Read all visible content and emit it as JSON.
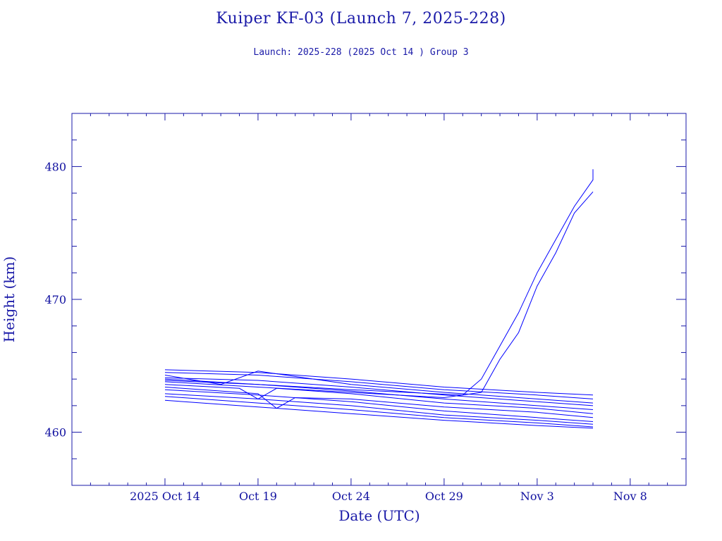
{
  "title": "Kuiper KF-03 (Launch 7, 2025-228)",
  "subtitle": "Launch: 2025-228  (2025 Oct 14 )  Group 3",
  "chart_data": {
    "type": "line",
    "title": "Kuiper KF-03 (Launch 7, 2025-228)",
    "subtitle": "Launch: 2025-228  (2025 Oct 14 )  Group 3",
    "xlabel": "Date (UTC)",
    "ylabel": "Height (km)",
    "xlim": [
      "2025-10-09",
      "2025-11-11"
    ],
    "ylim": [
      456,
      484
    ],
    "x_ticks": [
      {
        "date": "2025-10-14",
        "label": "2025 Oct 14"
      },
      {
        "date": "2025-10-19",
        "label": "Oct 19"
      },
      {
        "date": "2025-10-24",
        "label": "Oct 24"
      },
      {
        "date": "2025-10-29",
        "label": "Oct 29"
      },
      {
        "date": "2025-11-03",
        "label": "Nov  3"
      },
      {
        "date": "2025-11-08",
        "label": "Nov  8"
      }
    ],
    "y_ticks": [
      460,
      470,
      480
    ],
    "grid": false,
    "line_color": "#0000ff",
    "series": [
      {
        "x": [
          "2025-10-14",
          "2025-10-19",
          "2025-10-24",
          "2025-10-29",
          "2025-11-03",
          "2025-11-06"
        ],
        "y": [
          464.7,
          464.5,
          464.0,
          463.4,
          463.0,
          462.8
        ]
      },
      {
        "x": [
          "2025-10-14",
          "2025-10-19",
          "2025-10-24",
          "2025-10-29",
          "2025-11-03",
          "2025-11-06"
        ],
        "y": [
          464.5,
          464.3,
          463.8,
          463.2,
          462.8,
          462.5
        ]
      },
      {
        "x": [
          "2025-10-14",
          "2025-10-17",
          "2025-10-19",
          "2025-10-24",
          "2025-10-29",
          "2025-11-03",
          "2025-11-06"
        ],
        "y": [
          464.3,
          463.6,
          464.6,
          463.6,
          463.0,
          462.5,
          462.2
        ]
      },
      {
        "x": [
          "2025-10-14",
          "2025-10-19",
          "2025-10-24",
          "2025-10-29",
          "2025-11-03",
          "2025-11-06"
        ],
        "y": [
          464.1,
          463.9,
          463.4,
          462.8,
          462.3,
          462.0
        ]
      },
      {
        "x": [
          "2025-10-14",
          "2025-10-19",
          "2025-10-24",
          "2025-10-29",
          "2025-11-03",
          "2025-11-06"
        ],
        "y": [
          463.9,
          463.6,
          463.1,
          462.5,
          462.0,
          461.7
        ]
      },
      {
        "x": [
          "2025-10-14",
          "2025-10-18",
          "2025-10-19",
          "2025-10-20",
          "2025-10-24",
          "2025-10-29",
          "2025-11-03",
          "2025-11-06"
        ],
        "y": [
          463.6,
          463.3,
          462.5,
          463.3,
          462.9,
          462.2,
          461.8,
          461.4
        ]
      },
      {
        "x": [
          "2025-10-14",
          "2025-10-19",
          "2025-10-20",
          "2025-10-21",
          "2025-10-24",
          "2025-10-29",
          "2025-11-03",
          "2025-11-06"
        ],
        "y": [
          463.4,
          462.9,
          461.8,
          462.6,
          462.5,
          461.9,
          461.5,
          461.1
        ]
      },
      {
        "x": [
          "2025-10-14",
          "2025-10-19",
          "2025-10-24",
          "2025-10-29",
          "2025-11-03",
          "2025-11-06"
        ],
        "y": [
          463.2,
          462.8,
          462.3,
          461.6,
          461.1,
          460.8
        ]
      },
      {
        "x": [
          "2025-10-14",
          "2025-10-19",
          "2025-10-24",
          "2025-10-29",
          "2025-11-03",
          "2025-11-06"
        ],
        "y": [
          462.9,
          462.5,
          462.0,
          461.3,
          460.9,
          460.6
        ]
      },
      {
        "x": [
          "2025-10-14",
          "2025-10-19",
          "2025-10-24",
          "2025-10-29",
          "2025-11-03",
          "2025-11-06"
        ],
        "y": [
          462.7,
          462.2,
          461.7,
          461.1,
          460.7,
          460.4
        ]
      },
      {
        "x": [
          "2025-10-14",
          "2025-10-19",
          "2025-10-24",
          "2025-10-29",
          "2025-11-03",
          "2025-11-06"
        ],
        "y": [
          462.4,
          461.9,
          461.4,
          460.9,
          460.5,
          460.3
        ]
      },
      {
        "x": [
          "2025-10-14",
          "2025-10-19",
          "2025-10-24",
          "2025-10-30",
          "2025-10-31",
          "2025-11-01",
          "2025-11-02",
          "2025-11-03",
          "2025-11-04",
          "2025-11-05",
          "2025-11-06",
          "2025-11-06"
        ],
        "y": [
          464.0,
          463.6,
          463.2,
          462.8,
          464.0,
          466.5,
          469.0,
          472.0,
          474.5,
          477.0,
          479.0,
          479.8
        ]
      },
      {
        "x": [
          "2025-10-14",
          "2025-10-19",
          "2025-10-24",
          "2025-10-29",
          "2025-10-31",
          "2025-11-01",
          "2025-11-02",
          "2025-11-03",
          "2025-11-04",
          "2025-11-05",
          "2025-11-06"
        ],
        "y": [
          463.8,
          463.4,
          463.0,
          462.6,
          463.0,
          465.5,
          467.5,
          471.0,
          473.5,
          476.5,
          478.1
        ]
      }
    ]
  }
}
